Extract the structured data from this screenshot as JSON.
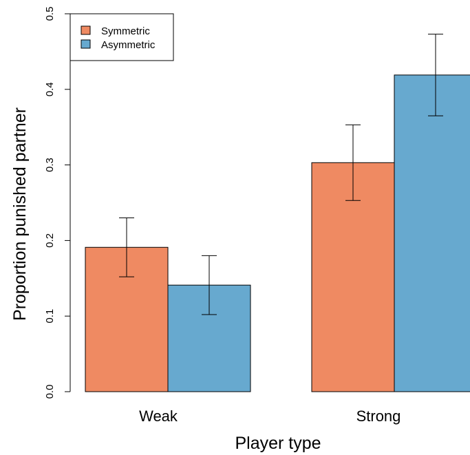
{
  "chart_data": {
    "type": "bar",
    "title": "",
    "xlabel": "Player type",
    "ylabel": "Proportion punished partner",
    "categories": [
      "Weak",
      "Strong"
    ],
    "ylim": [
      0,
      0.5
    ],
    "yticks": [
      "0.0",
      "0.1",
      "0.2",
      "0.3",
      "0.4",
      "0.5"
    ],
    "series": [
      {
        "name": "Symmetric",
        "color": "#ef8a62",
        "values": [
          0.191,
          0.303
        ],
        "err_low": [
          0.152,
          0.253
        ],
        "err_high": [
          0.23,
          0.353
        ]
      },
      {
        "name": "Asymmetric",
        "color": "#67a9cf",
        "values": [
          0.141,
          0.419
        ],
        "err_low": [
          0.102,
          0.365
        ],
        "err_high": [
          0.18,
          0.473
        ]
      }
    ],
    "legend_position": "top-left",
    "grid": false
  }
}
